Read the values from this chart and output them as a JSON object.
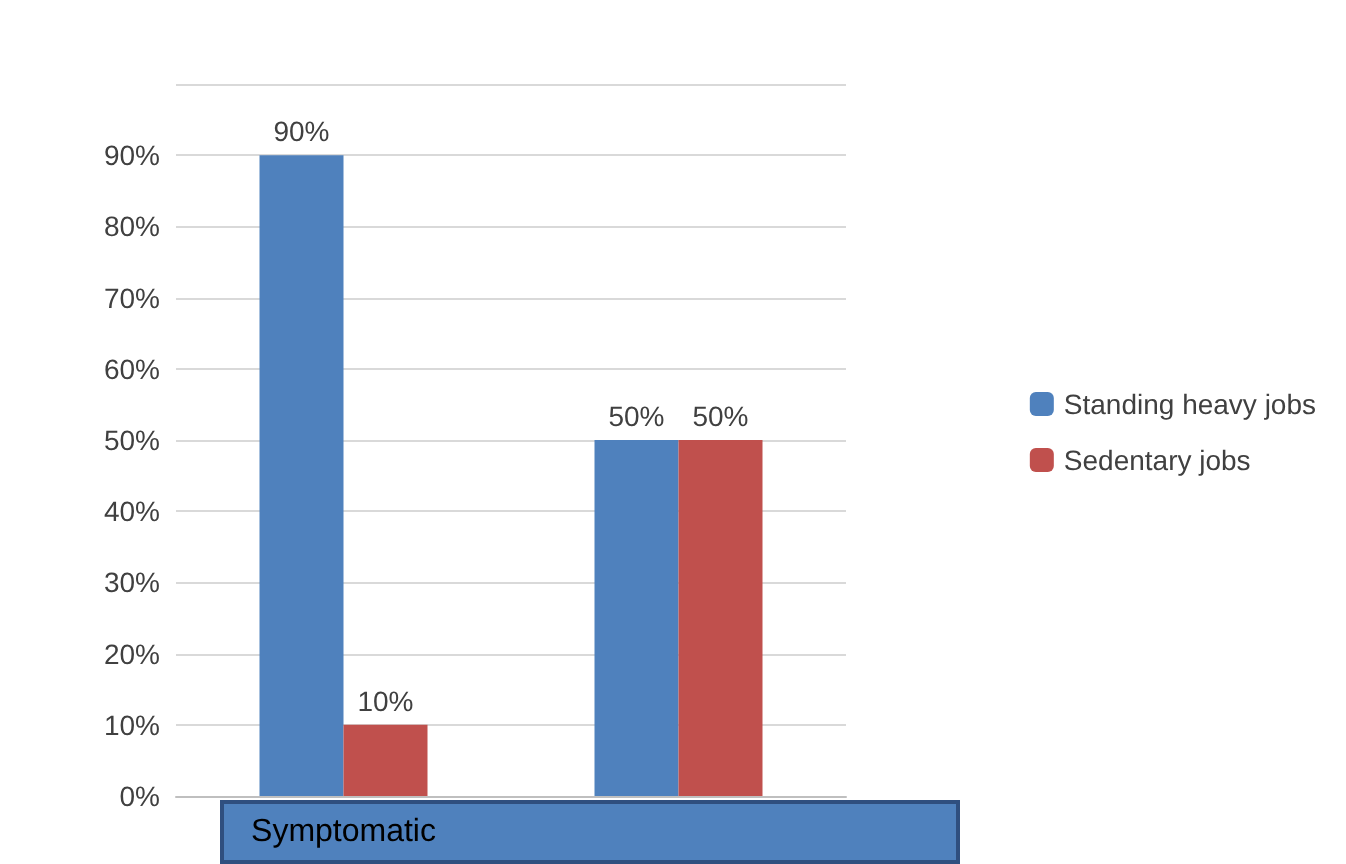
{
  "chart_data": {
    "type": "bar",
    "categories": [
      "Symptomatic",
      null
    ],
    "series": [
      {
        "name": "Standing heavy jobs",
        "color": "#4f81bd",
        "values": [
          90,
          50
        ],
        "value_labels": [
          "90%",
          "50%"
        ]
      },
      {
        "name": "Sedentary jobs",
        "color": "#c0504d",
        "values": [
          10,
          50
        ],
        "value_labels": [
          "10%",
          "50%"
        ]
      }
    ],
    "ylim": [
      0,
      100
    ],
    "yticks": [
      {
        "value": 0,
        "label": "0%"
      },
      {
        "value": 10,
        "label": "10%"
      },
      {
        "value": 20,
        "label": "20%"
      },
      {
        "value": 30,
        "label": "30%"
      },
      {
        "value": 40,
        "label": "40%"
      },
      {
        "value": 50,
        "label": "50%"
      },
      {
        "value": 60,
        "label": "60%"
      },
      {
        "value": 70,
        "label": "70%"
      },
      {
        "value": 80,
        "label": "80%"
      },
      {
        "value": 90,
        "label": "90%"
      },
      {
        "value": 100,
        "label": null
      }
    ],
    "grid": "y",
    "legend": "right"
  }
}
